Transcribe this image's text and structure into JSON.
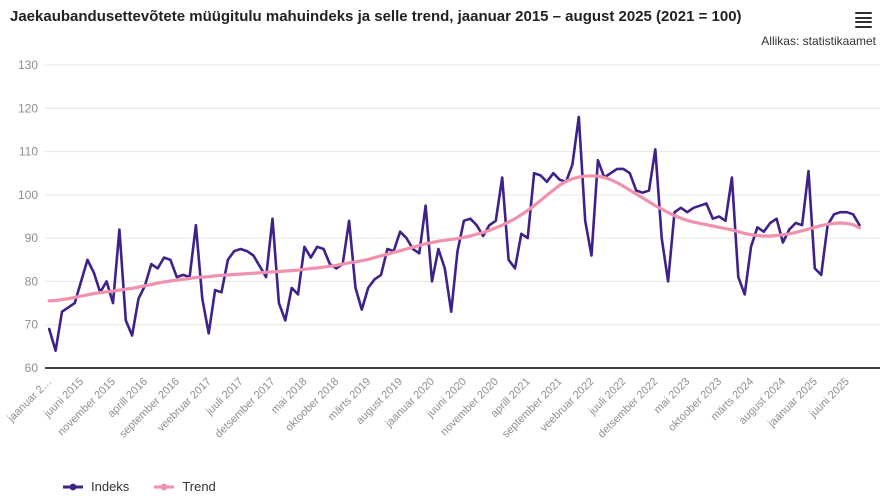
{
  "header": {
    "menu_icon": "hamburger-icon"
  },
  "chart_data": {
    "type": "line",
    "title": "Jaekaubandusettevõtete müügitulu mahuindeks ja selle trend, jaanuar 2015 – august 2025 (2021 = 100)",
    "source": "Allikas: statistikaamet",
    "x_start": "jaanuar 2015",
    "x_end": "august 2025",
    "months_count": 128,
    "x_tick_step_months": 5,
    "x_tick_labels": [
      "jaanuar 2…",
      "juuni 2015",
      "november 2015",
      "aprill 2016",
      "september 2016",
      "veebruar 2017",
      "juuli 2017",
      "detsember 2017",
      "mai 2018",
      "oktoober 2018",
      "märts 2019",
      "august 2019",
      "jaanuar 2020",
      "juuni 2020",
      "november 2020",
      "aprill 2021",
      "september 2021",
      "veebruar 2022",
      "juuli 2022",
      "detsember 2022",
      "mai 2023",
      "oktoober 2023",
      "märts 2024",
      "august 2024",
      "jaanuar 2025",
      "juuni 2025"
    ],
    "ylim": [
      60,
      130
    ],
    "y_ticks": [
      60,
      70,
      80,
      90,
      100,
      110,
      120,
      130
    ],
    "grid": "horizontal-only",
    "legend_position": "bottom-left",
    "series": [
      {
        "name": "Indeks",
        "color": "#3f2189",
        "values": [
          69,
          64,
          73,
          74,
          75,
          80,
          85,
          82,
          77.5,
          80,
          75,
          92,
          71,
          67.5,
          76,
          79,
          84,
          83,
          85.5,
          85,
          81,
          81.5,
          81,
          93,
          76,
          68,
          78,
          77.5,
          85,
          87,
          87.5,
          87,
          86,
          83.5,
          81,
          94.5,
          75,
          71,
          78.5,
          77,
          88,
          85.5,
          88,
          87.5,
          84,
          83,
          84,
          94,
          78.5,
          73.5,
          78.5,
          80.5,
          81.5,
          87.5,
          87,
          91.5,
          90,
          87.5,
          86.5,
          97.5,
          80,
          87.5,
          83,
          73,
          87,
          94,
          94.5,
          93,
          90.5,
          93,
          94,
          104,
          85,
          83,
          91,
          90,
          105,
          104.5,
          103,
          105,
          103.5,
          103,
          107,
          118,
          94,
          86,
          108,
          104,
          105,
          106,
          106,
          105,
          101,
          100.5,
          101,
          110.5,
          90,
          80,
          96,
          97,
          96,
          97,
          97.5,
          98,
          94.5,
          95,
          94,
          104,
          81,
          77,
          88,
          92.5,
          91.5,
          93.5,
          94.5,
          89,
          92,
          93.5,
          93,
          105.5,
          83,
          81.5,
          93,
          95.5,
          96,
          96,
          95.5,
          93
        ]
      },
      {
        "name": "Trend",
        "color": "#f092ad",
        "values": [
          75.5,
          75.6,
          75.8,
          76,
          76.3,
          76.6,
          76.9,
          77.2,
          77.4,
          77.6,
          77.8,
          78,
          78.2,
          78.4,
          78.7,
          79,
          79.3,
          79.6,
          79.9,
          80.1,
          80.3,
          80.5,
          80.7,
          80.9,
          81,
          81.1,
          81.3,
          81.4,
          81.5,
          81.6,
          81.7,
          81.8,
          81.9,
          82,
          82.1,
          82.2,
          82.3,
          82.4,
          82.5,
          82.6,
          82.8,
          83,
          83.1,
          83.3,
          83.5,
          83.7,
          84,
          84.3,
          84.5,
          84.8,
          85.1,
          85.5,
          85.9,
          86.3,
          86.7,
          87.1,
          87.5,
          87.9,
          88.3,
          88.7,
          89,
          89.3,
          89.5,
          89.7,
          89.9,
          90.2,
          90.5,
          90.9,
          91.3,
          91.8,
          92.4,
          93,
          93.7,
          94.5,
          95.4,
          96.4,
          97.5,
          98.7,
          99.9,
          101.1,
          102.2,
          103.1,
          103.7,
          104.1,
          104.3,
          104.4,
          104.3,
          104,
          103.5,
          102.8,
          102,
          101.1,
          100.2,
          99.3,
          98.4,
          97.5,
          96.7,
          95.9,
          95.2,
          94.6,
          94.1,
          93.7,
          93.4,
          93.1,
          92.8,
          92.5,
          92.2,
          91.9,
          91.5,
          91.1,
          90.8,
          90.6,
          90.5,
          90.5,
          90.6,
          90.8,
          91,
          91.3,
          91.7,
          92.1,
          92.5,
          92.9,
          93.2,
          93.4,
          93.5,
          93.4,
          93.1,
          92.4
        ]
      }
    ]
  },
  "style_colors": {
    "grid": "#e6e6e6",
    "axis_line": "#000000",
    "tick_text": "#8f8f8f",
    "title_text": "#222222"
  }
}
